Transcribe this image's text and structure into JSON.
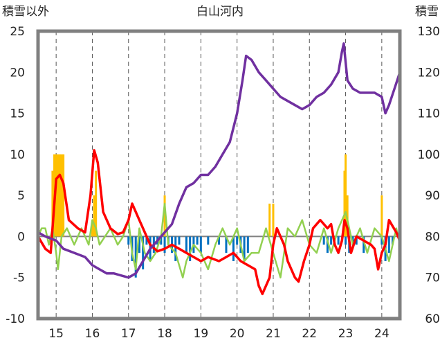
{
  "chart_data": {
    "type": "line",
    "title": "白山河内",
    "ylabel_left": "積雪以外",
    "ylabel_right": "積雪",
    "x_ticks": [
      "15",
      "16",
      "17",
      "18",
      "19",
      "20",
      "21",
      "22",
      "23",
      "24"
    ],
    "x_range": [
      14.5,
      24.5
    ],
    "y_left": {
      "ticks": [
        "25",
        "20",
        "15",
        "10",
        "5",
        "0",
        "-5",
        "-10"
      ],
      "range": [
        -10,
        25
      ]
    },
    "y_right": {
      "ticks": [
        "130",
        "120",
        "110",
        "100",
        "90",
        "80",
        "70",
        "60"
      ],
      "range": [
        60,
        130
      ]
    },
    "grid": {
      "vertical_dashed": true
    },
    "colors": {
      "red": "#ff0000",
      "purple": "#7030a0",
      "green": "#92d050",
      "orange": "#ffc000",
      "blue": "#0070c0",
      "frame": "#808080"
    },
    "series": [
      {
        "axis": "left",
        "color": "#ff0000",
        "x": [
          14.5,
          14.7,
          14.85,
          14.9,
          15.0,
          15.1,
          15.2,
          15.35,
          15.6,
          15.8,
          15.95,
          16.05,
          16.15,
          16.3,
          16.5,
          16.7,
          16.85,
          17.0,
          17.1,
          17.3,
          17.45,
          17.6,
          17.8,
          18.0,
          18.2,
          18.4,
          18.6,
          18.8,
          19.0,
          19.2,
          19.5,
          19.7,
          19.9,
          20.1,
          20.3,
          20.5,
          20.6,
          20.7,
          20.8,
          20.9,
          21.0,
          21.1,
          21.2,
          21.3,
          21.4,
          21.6,
          21.7,
          21.85,
          22.0,
          22.1,
          22.3,
          22.5,
          22.6,
          22.7,
          22.8,
          22.9,
          22.97,
          23.05,
          23.15,
          23.3,
          23.5,
          23.7,
          23.8,
          23.9,
          24.0,
          24.1,
          24.2,
          24.4,
          24.5
        ],
        "y": [
          0,
          -1.5,
          -2,
          1,
          7,
          7.5,
          6.5,
          2,
          1,
          0.5,
          5,
          10.5,
          9,
          3,
          1,
          0.3,
          0.5,
          2,
          4,
          2,
          0.5,
          -1,
          -1.8,
          -1.5,
          -1,
          -1.5,
          -2,
          -2.5,
          -3,
          -2.5,
          -3,
          -2.5,
          -2,
          -3,
          -3.5,
          -4,
          -6,
          -7,
          -6,
          -5,
          -1,
          1,
          0,
          -1,
          -3,
          -5,
          -5.5,
          -3,
          -1,
          1,
          2,
          1,
          1.5,
          -1,
          -2,
          -0.5,
          2,
          1,
          -2,
          0,
          -0.5,
          -1,
          -1.5,
          -4,
          -2,
          -1,
          2,
          0.5,
          -0.5
        ]
      },
      {
        "axis": "right",
        "color": "#7030a0",
        "x": [
          14.5,
          14.7,
          15.0,
          15.2,
          15.5,
          15.8,
          16.0,
          16.2,
          16.4,
          16.6,
          16.8,
          17.0,
          17.2,
          17.4,
          17.6,
          17.8,
          18.0,
          18.2,
          18.4,
          18.6,
          18.8,
          19.0,
          19.2,
          19.4,
          19.6,
          19.8,
          20.0,
          20.15,
          20.25,
          20.4,
          20.6,
          20.8,
          21.0,
          21.2,
          21.4,
          21.6,
          21.8,
          22.0,
          22.2,
          22.4,
          22.6,
          22.8,
          22.9,
          22.95,
          23.05,
          23.2,
          23.4,
          23.6,
          23.8,
          24.0,
          24.1,
          24.2,
          24.35,
          24.5
        ],
        "y": [
          81,
          80,
          79,
          77,
          76,
          75,
          73,
          72,
          71,
          71,
          70.5,
          70,
          71,
          74,
          77,
          79,
          81,
          83,
          88,
          92,
          93,
          95,
          95,
          97,
          100,
          103,
          110,
          118,
          124,
          123,
          120,
          118,
          116,
          114,
          113,
          112,
          111,
          112,
          114,
          115,
          117,
          120,
          125,
          127,
          118,
          116,
          115,
          115,
          115,
          114,
          110,
          112,
          116,
          120
        ]
      },
      {
        "axis": "left",
        "color": "#92d050",
        "x": [
          14.5,
          14.6,
          14.7,
          14.8,
          14.9,
          15.0,
          15.05,
          15.15,
          15.3,
          15.5,
          15.7,
          15.9,
          16.0,
          16.1,
          16.2,
          16.35,
          16.5,
          16.7,
          16.85,
          17.0,
          17.1,
          17.2,
          17.3,
          17.45,
          17.6,
          17.75,
          17.9,
          18.0,
          18.1,
          18.3,
          18.5,
          18.6,
          18.8,
          19.0,
          19.2,
          19.4,
          19.6,
          19.8,
          20.0,
          20.2,
          20.4,
          20.6,
          20.8,
          21.0,
          21.2,
          21.4,
          21.6,
          21.8,
          22.0,
          22.2,
          22.4,
          22.6,
          22.8,
          23.0,
          23.2,
          23.4,
          23.6,
          23.8,
          24.0,
          24.2,
          24.4,
          24.5
        ],
        "y": [
          0,
          1,
          1,
          -1,
          1,
          -2,
          -4,
          0,
          1,
          -1,
          1,
          -1,
          2,
          1,
          -1,
          0,
          1,
          -1,
          0,
          2,
          -2,
          -4,
          1,
          -2,
          -3,
          -2,
          0,
          4,
          -1,
          -2,
          -5,
          -3,
          -1,
          -2,
          -4,
          -1,
          1,
          -1,
          1,
          -3,
          -2,
          -2,
          1,
          -2,
          -5,
          1,
          0,
          2,
          -1,
          -2,
          1,
          -2,
          1,
          3,
          -1,
          1,
          -2,
          1,
          0,
          -3,
          1,
          -1
        ]
      }
    ],
    "bars_orange": {
      "axis": "left",
      "color": "#ffc000",
      "x": [
        14.9,
        14.95,
        15.0,
        15.05,
        15.1,
        15.15,
        15.2,
        16.0,
        16.05,
        16.1,
        18.0,
        20.9,
        21.0,
        22.97,
        23.0,
        23.05,
        24.0
      ],
      "y": [
        8,
        10,
        10,
        10,
        10,
        10,
        10,
        2,
        5,
        8,
        5,
        4,
        4,
        8,
        10,
        5,
        5
      ]
    },
    "bars_blue": {
      "axis": "left",
      "color": "#0070c0",
      "x": [
        17.0,
        17.1,
        17.2,
        17.3,
        17.4,
        17.5,
        17.6,
        17.7,
        17.8,
        17.9,
        18.0,
        18.1,
        18.2,
        18.3,
        18.4,
        18.6,
        18.7,
        18.8,
        18.9,
        19.0,
        19.2,
        19.5,
        19.7,
        19.9,
        20.0,
        20.1,
        20.2,
        20.3,
        22.4,
        22.5,
        22.6,
        22.8,
        23.0,
        23.1,
        23.2,
        23.3,
        23.5,
        24.0,
        24.1,
        24.2,
        24.3
      ],
      "y": [
        -1,
        -3,
        -5,
        -2,
        -4,
        -1,
        -3,
        -2,
        -1,
        -1,
        -2,
        -1,
        -2,
        -3,
        -1,
        -2,
        -3,
        -2,
        -1,
        -2,
        -1,
        -1,
        -2,
        -3,
        -1,
        -2,
        -3,
        -2,
        -1,
        -2,
        -1,
        -1,
        -1,
        -2,
        -1,
        -1,
        -2,
        -1,
        -3,
        -2,
        -1
      ]
    }
  }
}
